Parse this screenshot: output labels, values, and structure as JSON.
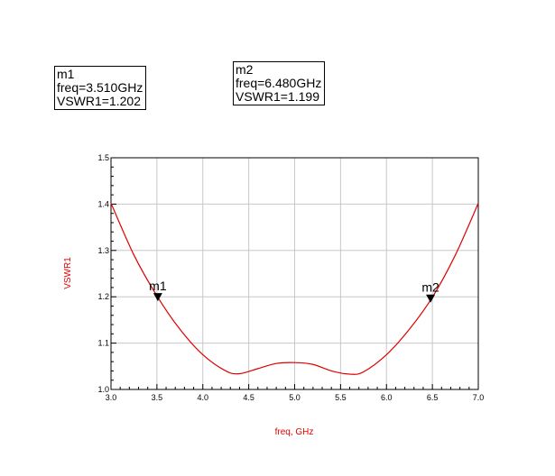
{
  "markers": [
    {
      "name": "m1",
      "freq_text": "freq=3.510GHz",
      "value_text": "VSWR1=1.202",
      "freq": 3.51,
      "value": 1.202
    },
    {
      "name": "m2",
      "freq_text": "freq=6.480GHz",
      "value_text": "VSWR1=1.199",
      "freq": 6.48,
      "value": 1.199
    }
  ],
  "chart_data": {
    "type": "line",
    "xlabel": "freq, GHz",
    "ylabel": "VSWR1",
    "xlim": [
      3.0,
      7.0
    ],
    "ylim": [
      1.0,
      1.5
    ],
    "x_ticks": [
      "3.0",
      "3.5",
      "4.0",
      "4.5",
      "5.0",
      "5.5",
      "6.0",
      "6.5",
      "7.0"
    ],
    "y_ticks": [
      "1.0",
      "1.1",
      "1.2",
      "1.3",
      "1.4",
      "1.5"
    ],
    "grid": true,
    "series": [
      {
        "color": "#e00000",
        "x": [
          3.0,
          3.25,
          3.5,
          3.75,
          4.0,
          4.25,
          4.4,
          4.6,
          4.8,
          5.0,
          5.2,
          5.4,
          5.6,
          5.75,
          6.0,
          6.25,
          6.5,
          6.75,
          7.0
        ],
        "y": [
          1.402,
          1.29,
          1.202,
          1.13,
          1.075,
          1.04,
          1.034,
          1.045,
          1.056,
          1.058,
          1.054,
          1.04,
          1.033,
          1.038,
          1.075,
          1.13,
          1.199,
          1.29,
          1.402
        ]
      }
    ]
  }
}
